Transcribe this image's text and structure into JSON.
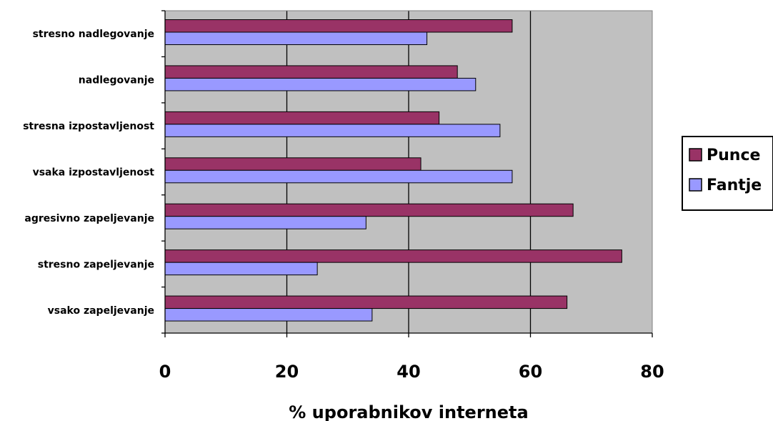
{
  "chart_data": {
    "type": "bar",
    "orientation": "horizontal",
    "categories": [
      "stresno nadlegovanje",
      "nadlegovanje",
      "stresna izpostavljenost",
      "vsaka izpostavljenost",
      "agresivno zapeljevanje",
      "stresno zapeljevanje",
      "vsako zapeljevanje"
    ],
    "series": [
      {
        "name": "Punce",
        "color": "#993366",
        "values": [
          57,
          48,
          45,
          42,
          67,
          75,
          66
        ]
      },
      {
        "name": "Fantje",
        "color": "#9999ff",
        "values": [
          43,
          51,
          55,
          57,
          33,
          25,
          34
        ]
      }
    ],
    "xlim": [
      0,
      80
    ],
    "xticks": [
      0,
      20,
      40,
      60,
      80
    ],
    "xtick_labels": [
      "0",
      "20",
      "40",
      "60",
      "80"
    ],
    "xlabel": "% uporabnikov interneta",
    "ylabel": "",
    "title": "",
    "grid": "vertical",
    "plot_background": "#c0c0c0",
    "legend_position": "right"
  }
}
